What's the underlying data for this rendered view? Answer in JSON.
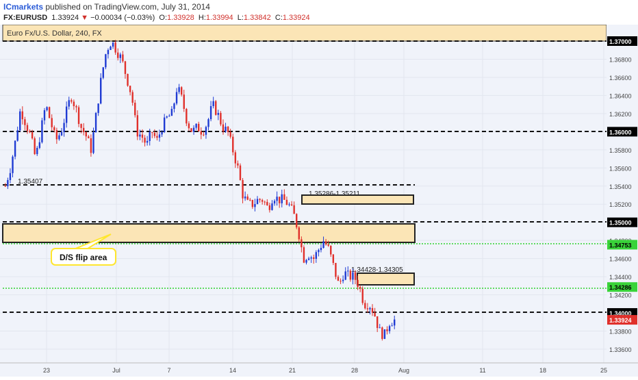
{
  "header": {
    "brand": "ICmarkets",
    "published": "published on TradingView.com, July 31, 2014",
    "symbol": "FX:EURUSD",
    "last": "1.33924",
    "change_arrow": "▼",
    "change": "−0.00034 (−0.03%)",
    "open_label": "O:",
    "open": "1.33928",
    "high_label": "H:",
    "high": "1.33994",
    "low_label": "L:",
    "low": "1.33842",
    "close_label": "C:",
    "close": "1.33924"
  },
  "colors": {
    "zone_fill": "#fbe5b6",
    "zone_border": "#222222",
    "up_candle": "#1f3bd3",
    "down_candle": "#e0302b",
    "green_line": "#22cc22",
    "price_tag": "#e0302b",
    "green_tag": "#39d339",
    "callout_border": "#ffee33"
  },
  "chart_data": {
    "type": "candlestick",
    "title": "Euro Fx/U.S. Dollar, 240, FX",
    "y_axis": {
      "ticks": [
        "1.37000",
        "1.36800",
        "1.36600",
        "1.36400",
        "1.36200",
        "1.36000",
        "1.35800",
        "1.35600",
        "1.35400",
        "1.35200",
        "1.35000",
        "1.34800",
        "1.34600",
        "1.34400",
        "1.34200",
        "1.34000",
        "1.33800",
        "1.33600"
      ],
      "ylim": [
        1.335,
        1.3715
      ],
      "highlighted": [
        {
          "label": "1.37000",
          "style": "black"
        },
        {
          "label": "1.36000",
          "style": "black"
        },
        {
          "label": "1.35000",
          "style": "black"
        },
        {
          "label": "1.34753",
          "style": "green"
        },
        {
          "label": "1.34286",
          "style": "green"
        },
        {
          "label": "1.34000",
          "style": "black"
        },
        {
          "label": "1.33924",
          "style": "red"
        }
      ]
    },
    "x_axis": {
      "ticks": [
        "23",
        "Jul",
        "7",
        "14",
        "21",
        "28",
        "Aug",
        "11",
        "18",
        "25"
      ]
    },
    "horizontal_levels": [
      {
        "value": 1.37,
        "style": "dashed-black"
      },
      {
        "value": 1.36,
        "style": "dashed-black"
      },
      {
        "value": 1.354,
        "style": "dashed-black",
        "label": "1.35407"
      },
      {
        "value": 1.35,
        "style": "dashed-black"
      },
      {
        "value": 1.34753,
        "style": "dotted-green"
      },
      {
        "value": 1.34286,
        "style": "dotted-green"
      },
      {
        "value": 1.34,
        "style": "dashed-black"
      }
    ],
    "zones": [
      {
        "name": "top-zone",
        "from": 1.37,
        "to": 1.3712
      },
      {
        "name": "d-s-flip-zone",
        "from": 1.3478,
        "to": 1.3494
      },
      {
        "label": "1.35286-1.35211",
        "from": 1.35211,
        "to": 1.35286
      },
      {
        "label": "1.34428-1.34305",
        "from": 1.34305,
        "to": 1.34428
      }
    ],
    "annotations": [
      {
        "text": "D/S flip area"
      }
    ],
    "price_path": [
      1.354,
      1.356,
      1.359,
      1.3625,
      1.361,
      1.3595,
      1.357,
      1.36,
      1.363,
      1.361,
      1.359,
      1.36,
      1.362,
      1.364,
      1.3625,
      1.3605,
      1.3595,
      1.358,
      1.362,
      1.366,
      1.369,
      1.37,
      1.369,
      1.368,
      1.366,
      1.364,
      1.36,
      1.3595,
      1.3585,
      1.36,
      1.359,
      1.3605,
      1.3615,
      1.362,
      1.365,
      1.3635,
      1.361,
      1.36,
      1.3605,
      1.36,
      1.361,
      1.363,
      1.362,
      1.3605,
      1.36,
      1.358,
      1.356,
      1.353,
      1.352,
      1.352,
      1.3525,
      1.3525,
      1.3515,
      1.353,
      1.3525,
      1.3525,
      1.352,
      1.351,
      1.349,
      1.346,
      1.3465,
      1.346,
      1.347,
      1.348,
      1.347,
      1.345,
      1.343,
      1.3445,
      1.344,
      1.344,
      1.343,
      1.341,
      1.341,
      1.34,
      1.338,
      1.3375,
      1.339,
      1.3392
    ]
  }
}
